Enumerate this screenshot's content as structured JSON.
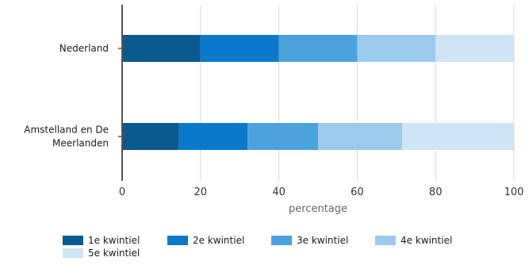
{
  "chart_data": {
    "type": "bar",
    "orientation": "horizontal",
    "stacked": true,
    "categories": [
      "Nederland",
      "Amstelland en De Meerlanden"
    ],
    "category_lines": [
      [
        "Nederland"
      ],
      [
        "Amstelland en De",
        "Meerlanden"
      ]
    ],
    "series": [
      {
        "name": "1e kwintiel",
        "values": [
          20,
          14.5
        ],
        "color": "#0b5a8f"
      },
      {
        "name": "2e kwintiel",
        "values": [
          20,
          17.5
        ],
        "color": "#0a79cc"
      },
      {
        "name": "3e kwintiel",
        "values": [
          20,
          18
        ],
        "color": "#4ca2dd"
      },
      {
        "name": "4e kwintiel",
        "values": [
          20,
          21.5
        ],
        "color": "#9bcaec"
      },
      {
        "name": "5e kwintiel",
        "values": [
          20,
          28.5
        ],
        "color": "#cfe4f5"
      }
    ],
    "xlabel": "percentage",
    "xlim": [
      0,
      100
    ],
    "xticks": [
      "0",
      "20",
      "40",
      "60",
      "80",
      "100"
    ],
    "grid": true,
    "legend_position": "bottom"
  }
}
